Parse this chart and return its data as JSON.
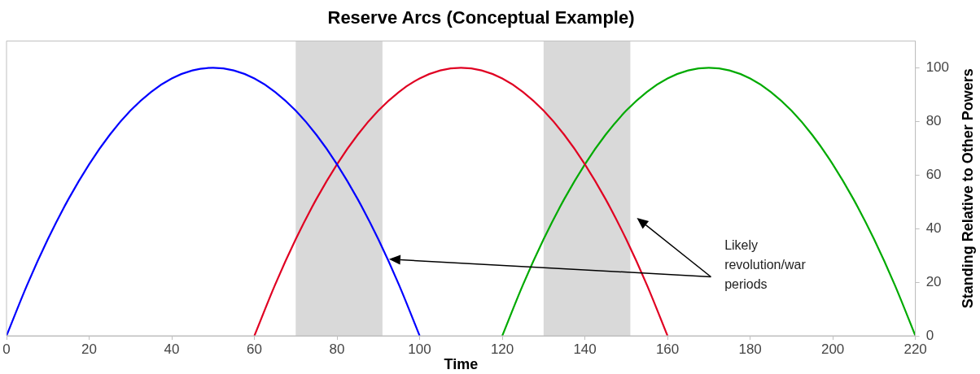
{
  "chart_data": {
    "type": "line",
    "title": "Reserve Arcs (Conceptual Example)",
    "xlabel": "Time",
    "ylabel": "Standing Relative to Other Powers",
    "series": [
      {
        "color": "#0000ff",
        "x": [
          0,
          5,
          10,
          15,
          20,
          25,
          30,
          35,
          40,
          45,
          50,
          55,
          60,
          65,
          70,
          75,
          80,
          85,
          90,
          95,
          100
        ],
        "values": [
          0,
          19,
          36,
          51,
          64,
          75,
          84,
          91,
          96,
          99,
          100,
          99,
          96,
          91,
          84,
          75,
          64,
          51,
          36,
          19,
          0
        ]
      },
      {
        "color": "#e00022",
        "x": [
          60,
          65,
          70,
          75,
          80,
          85,
          90,
          95,
          100,
          105,
          110,
          115,
          120,
          125,
          130,
          135,
          140,
          145,
          150,
          155,
          160
        ],
        "values": [
          0,
          19,
          36,
          51,
          64,
          75,
          84,
          91,
          96,
          99,
          100,
          99,
          96,
          91,
          84,
          75,
          64,
          51,
          36,
          19,
          0
        ]
      },
      {
        "color": "#00aa00",
        "x": [
          120,
          125,
          130,
          135,
          140,
          145,
          150,
          155,
          160,
          165,
          170,
          175,
          180,
          185,
          190,
          195,
          200,
          205,
          210,
          215,
          220
        ],
        "values": [
          0,
          19,
          36,
          51,
          64,
          75,
          84,
          91,
          96,
          99,
          100,
          99,
          96,
          91,
          84,
          75,
          64,
          51,
          36,
          19,
          0
        ]
      }
    ],
    "bands": [
      {
        "axis": "x",
        "from": 70,
        "to": 91,
        "color": "#d9d9d9"
      },
      {
        "axis": "x",
        "from": 130,
        "to": 151,
        "color": "#d9d9d9"
      }
    ],
    "annotations": [
      "Likely revolution/war periods"
    ],
    "xlim": [
      0,
      220
    ],
    "xticks": [
      0,
      20,
      40,
      60,
      80,
      100,
      120,
      140,
      160,
      180,
      200,
      220
    ],
    "ylim": [
      0,
      110
    ],
    "yticks": [
      0,
      20,
      40,
      60,
      80,
      100
    ],
    "grid": false,
    "legend": false,
    "marker": "none",
    "line_style": "solid"
  }
}
